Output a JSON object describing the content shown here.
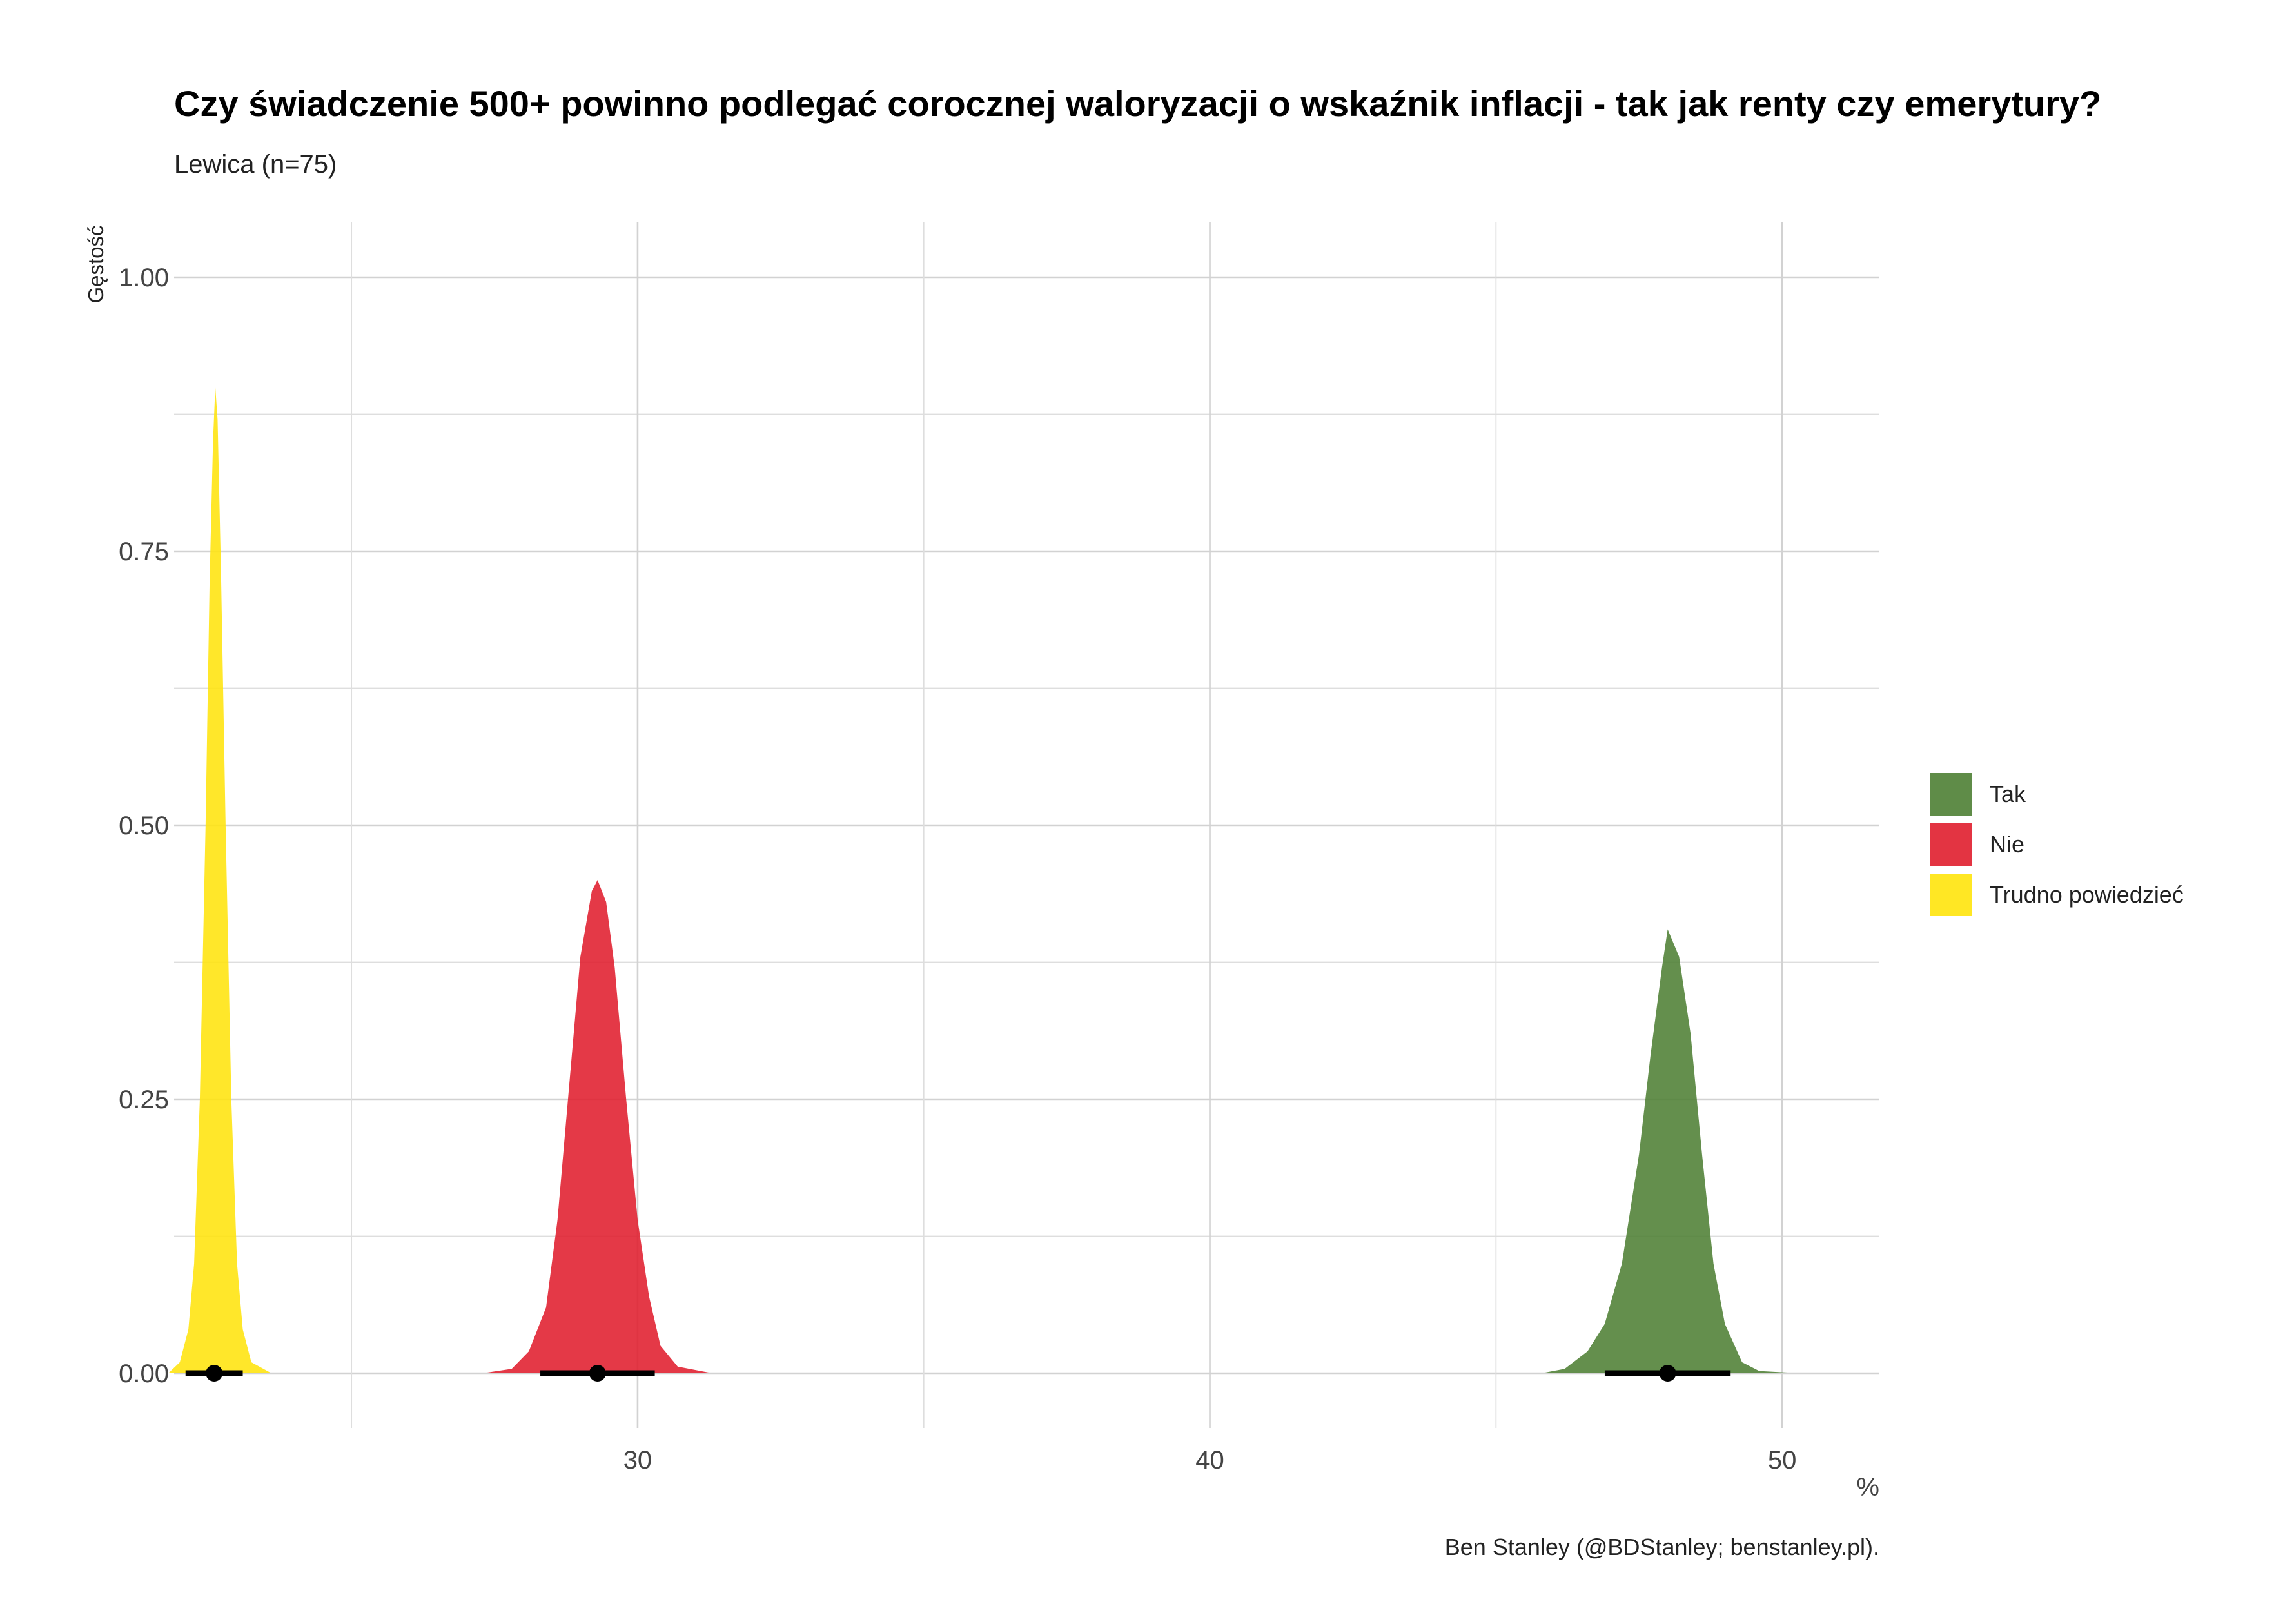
{
  "chart_data": {
    "type": "area",
    "title": "Czy świadczenie 500+ powinno podlegać corocznej waloryzacji o wskaźnik inflacji - tak jak renty czy emerytury?",
    "subtitle": "Lewica (n=75)",
    "xlabel": "%",
    "ylabel": "Gęstość",
    "caption": "Ben Stanley (@BDStanley; benstanley.pl).",
    "xlim": [
      21.9,
      51.7
    ],
    "ylim": [
      -0.05,
      1.05
    ],
    "x_ticks": [
      30,
      40,
      50
    ],
    "y_ticks": [
      0.0,
      0.25,
      0.5,
      0.75,
      1.0
    ],
    "x_tick_labels": [
      "30",
      "40",
      "50"
    ],
    "y_tick_labels": [
      "0.00",
      "0.25",
      "0.50",
      "0.75",
      "1.00"
    ],
    "grid": true,
    "legend_position": "right",
    "series": [
      {
        "name": "Tak",
        "color": "#4e7f34",
        "mean": 48.0,
        "interval": [
          46.9,
          49.1
        ],
        "density": [
          [
            45.8,
            0.0
          ],
          [
            46.2,
            0.004
          ],
          [
            46.6,
            0.02
          ],
          [
            46.9,
            0.045
          ],
          [
            47.2,
            0.1
          ],
          [
            47.5,
            0.2
          ],
          [
            47.7,
            0.29
          ],
          [
            47.9,
            0.37
          ],
          [
            48.0,
            0.405
          ],
          [
            48.2,
            0.38
          ],
          [
            48.4,
            0.31
          ],
          [
            48.6,
            0.2
          ],
          [
            48.8,
            0.1
          ],
          [
            49.0,
            0.045
          ],
          [
            49.3,
            0.01
          ],
          [
            49.6,
            0.002
          ],
          [
            50.3,
            0.0
          ]
        ]
      },
      {
        "name": "Nie",
        "color": "#e01e2d",
        "mean": 29.3,
        "interval": [
          28.3,
          30.3
        ],
        "density": [
          [
            27.3,
            0.0
          ],
          [
            27.8,
            0.004
          ],
          [
            28.1,
            0.02
          ],
          [
            28.4,
            0.06
          ],
          [
            28.6,
            0.14
          ],
          [
            28.8,
            0.26
          ],
          [
            29.0,
            0.38
          ],
          [
            29.2,
            0.44
          ],
          [
            29.3,
            0.45
          ],
          [
            29.45,
            0.43
          ],
          [
            29.6,
            0.37
          ],
          [
            29.8,
            0.25
          ],
          [
            30.0,
            0.14
          ],
          [
            30.2,
            0.07
          ],
          [
            30.4,
            0.025
          ],
          [
            30.7,
            0.006
          ],
          [
            31.3,
            0.0
          ]
        ]
      },
      {
        "name": "Trudno powiedzieć",
        "color": "#ffe40c",
        "mean": 22.6,
        "interval": [
          22.1,
          23.1
        ],
        "density": [
          [
            21.8,
            0.0
          ],
          [
            22.0,
            0.01
          ],
          [
            22.15,
            0.04
          ],
          [
            22.25,
            0.1
          ],
          [
            22.35,
            0.25
          ],
          [
            22.45,
            0.5
          ],
          [
            22.52,
            0.72
          ],
          [
            22.58,
            0.85
          ],
          [
            22.62,
            0.9
          ],
          [
            22.66,
            0.87
          ],
          [
            22.72,
            0.73
          ],
          [
            22.8,
            0.5
          ],
          [
            22.9,
            0.25
          ],
          [
            23.0,
            0.1
          ],
          [
            23.1,
            0.04
          ],
          [
            23.25,
            0.01
          ],
          [
            23.6,
            0.0
          ]
        ]
      }
    ]
  }
}
